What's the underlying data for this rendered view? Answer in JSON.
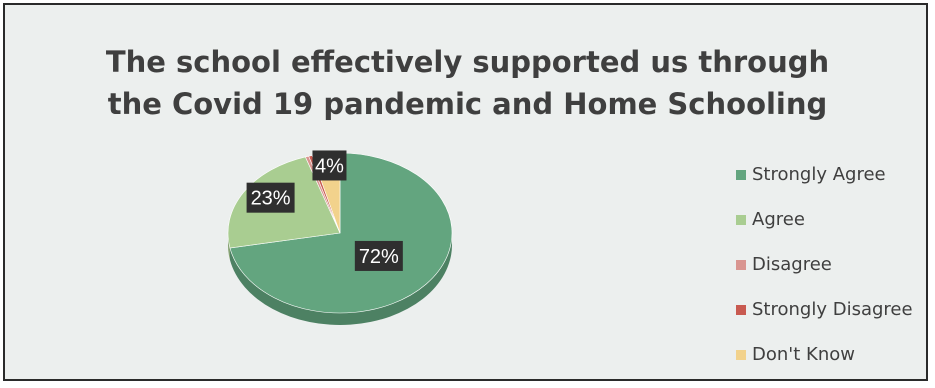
{
  "chart_data": {
    "type": "pie",
    "title": [
      "The school effectively supported us through",
      "the Covid 19 pandemic and Home Schooling"
    ],
    "categories": [
      "Strongly Agree",
      "Agree",
      "Disagree",
      "Strongly Disagree",
      "Don't Know"
    ],
    "values": [
      72,
      23,
      0.5,
      0.5,
      4
    ],
    "colors": [
      "#63a57f",
      "#a9cd91",
      "#d99590",
      "#c85a50",
      "#f2d28c"
    ],
    "data_labels": [
      "72%",
      "23%",
      "",
      "",
      "4%"
    ],
    "legend_position": "right",
    "style": "3d-pie"
  }
}
